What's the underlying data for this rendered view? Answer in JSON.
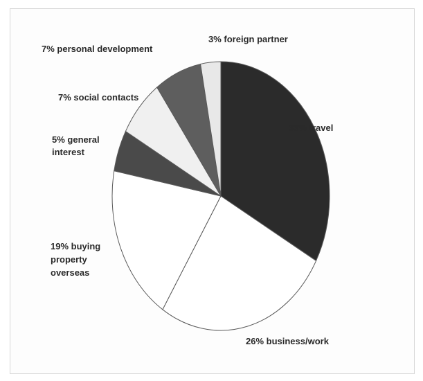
{
  "chart_data": {
    "type": "pie",
    "start_angle_deg": 0,
    "direction": "clockwise",
    "slices": [
      {
        "label": "33% travel",
        "value": 33,
        "color": "#2b2b2b"
      },
      {
        "label": "26% business/work",
        "value": 26,
        "color": "#ffffff"
      },
      {
        "label": "19% buying property overseas",
        "lines": [
          "19% buying",
          "property",
          "overseas"
        ],
        "value": 19,
        "color": "#ffffff"
      },
      {
        "label": "5% general interest",
        "lines": [
          "5% general",
          "interest"
        ],
        "value": 5,
        "color": "#4a4a4a"
      },
      {
        "label": "7% social contacts",
        "value": 7,
        "color": "#f0f0f0"
      },
      {
        "label": "7% personal development",
        "value": 7,
        "color": "#5e5e5e"
      },
      {
        "label": "3% foreign partner",
        "value": 3,
        "color": "#e8e8e8"
      }
    ]
  }
}
